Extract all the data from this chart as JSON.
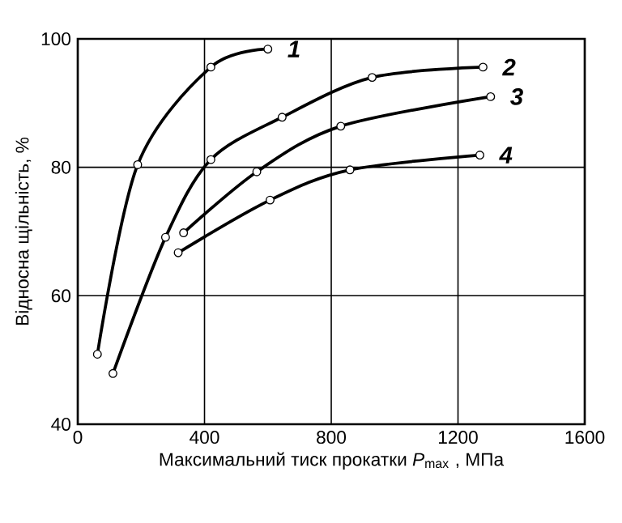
{
  "chart_data": {
    "type": "line",
    "xlabel": "Максимальний тиск прокатки *P*$_{max}$ ,  МПа",
    "ylabel": "Відносна щільність, %",
    "xlim": [
      0,
      1600
    ],
    "ylim": [
      40,
      100
    ],
    "xticks": [
      0,
      400,
      800,
      1200,
      1600
    ],
    "yticks": [
      40,
      60,
      80,
      100
    ],
    "grid": true,
    "marker": "circle",
    "line_style": "solid",
    "series": [
      {
        "name": "1",
        "color": "#000000",
        "x": [
          62,
          189,
          420,
          600
        ],
        "values": [
          50.9,
          80.4,
          95.6,
          98.4
        ]
      },
      {
        "name": "2",
        "color": "#000000",
        "x": [
          111,
          277,
          420,
          645,
          929,
          1279
        ],
        "values": [
          47.9,
          69.1,
          81.2,
          87.8,
          94.0,
          95.6
        ]
      },
      {
        "name": "3",
        "color": "#000000",
        "x": [
          334,
          565,
          830,
          1303
        ],
        "values": [
          69.8,
          79.3,
          86.4,
          91.0
        ]
      },
      {
        "name": "4",
        "color": "#000000",
        "x": [
          317,
          607,
          859,
          1269
        ],
        "values": [
          66.7,
          74.9,
          79.6,
          81.9
        ]
      }
    ]
  }
}
